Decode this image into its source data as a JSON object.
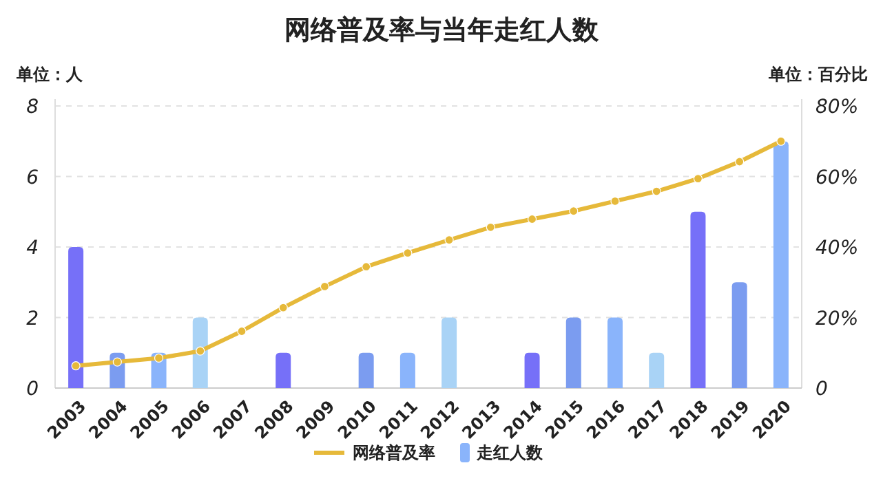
{
  "chart_data": {
    "type": "bar",
    "title": "网络普及率与当年走红人数",
    "ylabel": "单位：人",
    "y2label": "单位：百分比",
    "categories": [
      "2003",
      "2004",
      "2005",
      "2006",
      "2007",
      "2008",
      "2009",
      "2010",
      "2011",
      "2012",
      "2013",
      "2014",
      "2015",
      "2016",
      "2017",
      "2018",
      "2019",
      "2020"
    ],
    "series": [
      {
        "name": "网络普及率",
        "type": "line",
        "axis": "y2",
        "color": "#e6b93a",
        "marker": "circle",
        "values": [
          6.3,
          7.4,
          8.5,
          10.5,
          16.1,
          22.8,
          28.8,
          34.4,
          38.3,
          42.0,
          45.6,
          47.9,
          50.2,
          53.0,
          55.8,
          59.4,
          64.2,
          70.0
        ]
      },
      {
        "name": "走红人数",
        "color": "#8ab4fb",
        "colors": [
          "#7670f8",
          "#7b9cf0",
          "#8ab4fb",
          "#a9d3f6",
          "#7670f8",
          "#7670f8",
          "#7b9cf0",
          "#7b9cf0",
          "#8ab4fb",
          "#a9d3f6",
          "#8ab4fb",
          "#7670f8",
          "#7b9cf0",
          "#8ab4fb",
          "#a9d3f6",
          "#7670f8",
          "#7b9cf0",
          "#8ab4fb"
        ],
        "values": [
          4,
          1,
          1,
          2,
          0,
          1,
          0,
          1,
          1,
          2,
          0,
          1,
          2,
          2,
          1,
          5,
          3,
          7
        ]
      }
    ],
    "ylim": [
      0,
      8
    ],
    "yticks": [
      0,
      2,
      4,
      6,
      8
    ],
    "y2lim": [
      0,
      80
    ],
    "y2ticks": [
      0,
      {
        "value": 20,
        "label": "20%"
      },
      {
        "value": 40,
        "label": "40%"
      },
      {
        "value": 60,
        "label": "60%"
      },
      {
        "value": 80,
        "label": "80%"
      }
    ],
    "grid": "y",
    "legend": "bottom"
  }
}
